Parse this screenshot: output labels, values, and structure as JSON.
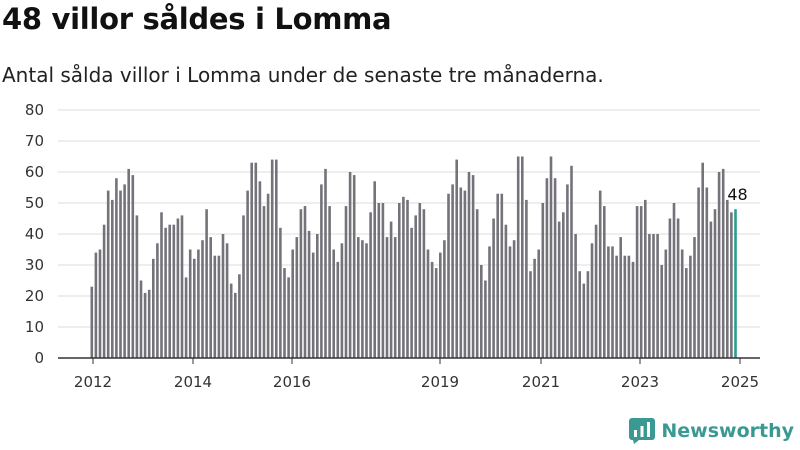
{
  "header": {
    "title": "48 villor såldes i Lomma",
    "subtitle": "Antal sålda villor i Lomma under de senaste tre månaderna."
  },
  "brand": {
    "name": "Newsworthy",
    "icon": "bar-chart-logo-icon",
    "color": "#3a9a93"
  },
  "colors": {
    "bar": "#74737a",
    "highlight": "#2a9d8f",
    "grid": "#dddddd",
    "axis": "#333333"
  },
  "chart_data": {
    "type": "bar",
    "title": "48 villor såldes i Lomma",
    "subtitle": "Antal sålda villor i Lomma under de senaste tre månaderna.",
    "xlabel": "",
    "ylabel": "",
    "ylim": [
      0,
      80
    ],
    "yticks": [
      0,
      10,
      20,
      30,
      40,
      50,
      60,
      70,
      80
    ],
    "xticks": [
      "2012",
      "2014",
      "2016",
      "2019",
      "2021",
      "2023",
      "2025"
    ],
    "grid": true,
    "values": [
      23,
      34,
      35,
      43,
      54,
      51,
      58,
      54,
      56,
      61,
      59,
      46,
      25,
      21,
      22,
      32,
      37,
      47,
      42,
      43,
      43,
      45,
      46,
      26,
      35,
      32,
      35,
      38,
      48,
      39,
      33,
      33,
      40,
      37,
      24,
      21,
      27,
      46,
      54,
      63,
      63,
      57,
      49,
      53,
      64,
      64,
      42,
      29,
      26,
      35,
      39,
      48,
      49,
      41,
      34,
      40,
      56,
      61,
      49,
      35,
      31,
      37,
      49,
      60,
      59,
      39,
      38,
      37,
      47,
      57,
      50,
      50,
      39,
      44,
      39,
      50,
      52,
      51,
      42,
      46,
      50,
      48,
      35,
      31,
      29,
      34,
      38,
      53,
      56,
      64,
      55,
      54,
      60,
      59,
      48,
      30,
      25,
      36,
      45,
      53,
      53,
      43,
      36,
      38,
      65,
      65,
      51,
      28,
      32,
      35,
      50,
      58,
      65,
      58,
      44,
      47,
      56,
      62,
      40,
      28,
      24,
      28,
      37,
      43,
      54,
      49,
      36,
      36,
      33,
      39,
      33,
      33,
      31,
      49,
      49,
      51,
      40,
      40,
      40,
      30,
      35,
      45,
      50,
      45,
      35,
      29,
      33,
      39,
      55,
      63,
      55,
      44,
      48,
      60,
      61,
      51,
      47,
      48
    ],
    "highlight_last": true,
    "last_label": "48"
  }
}
